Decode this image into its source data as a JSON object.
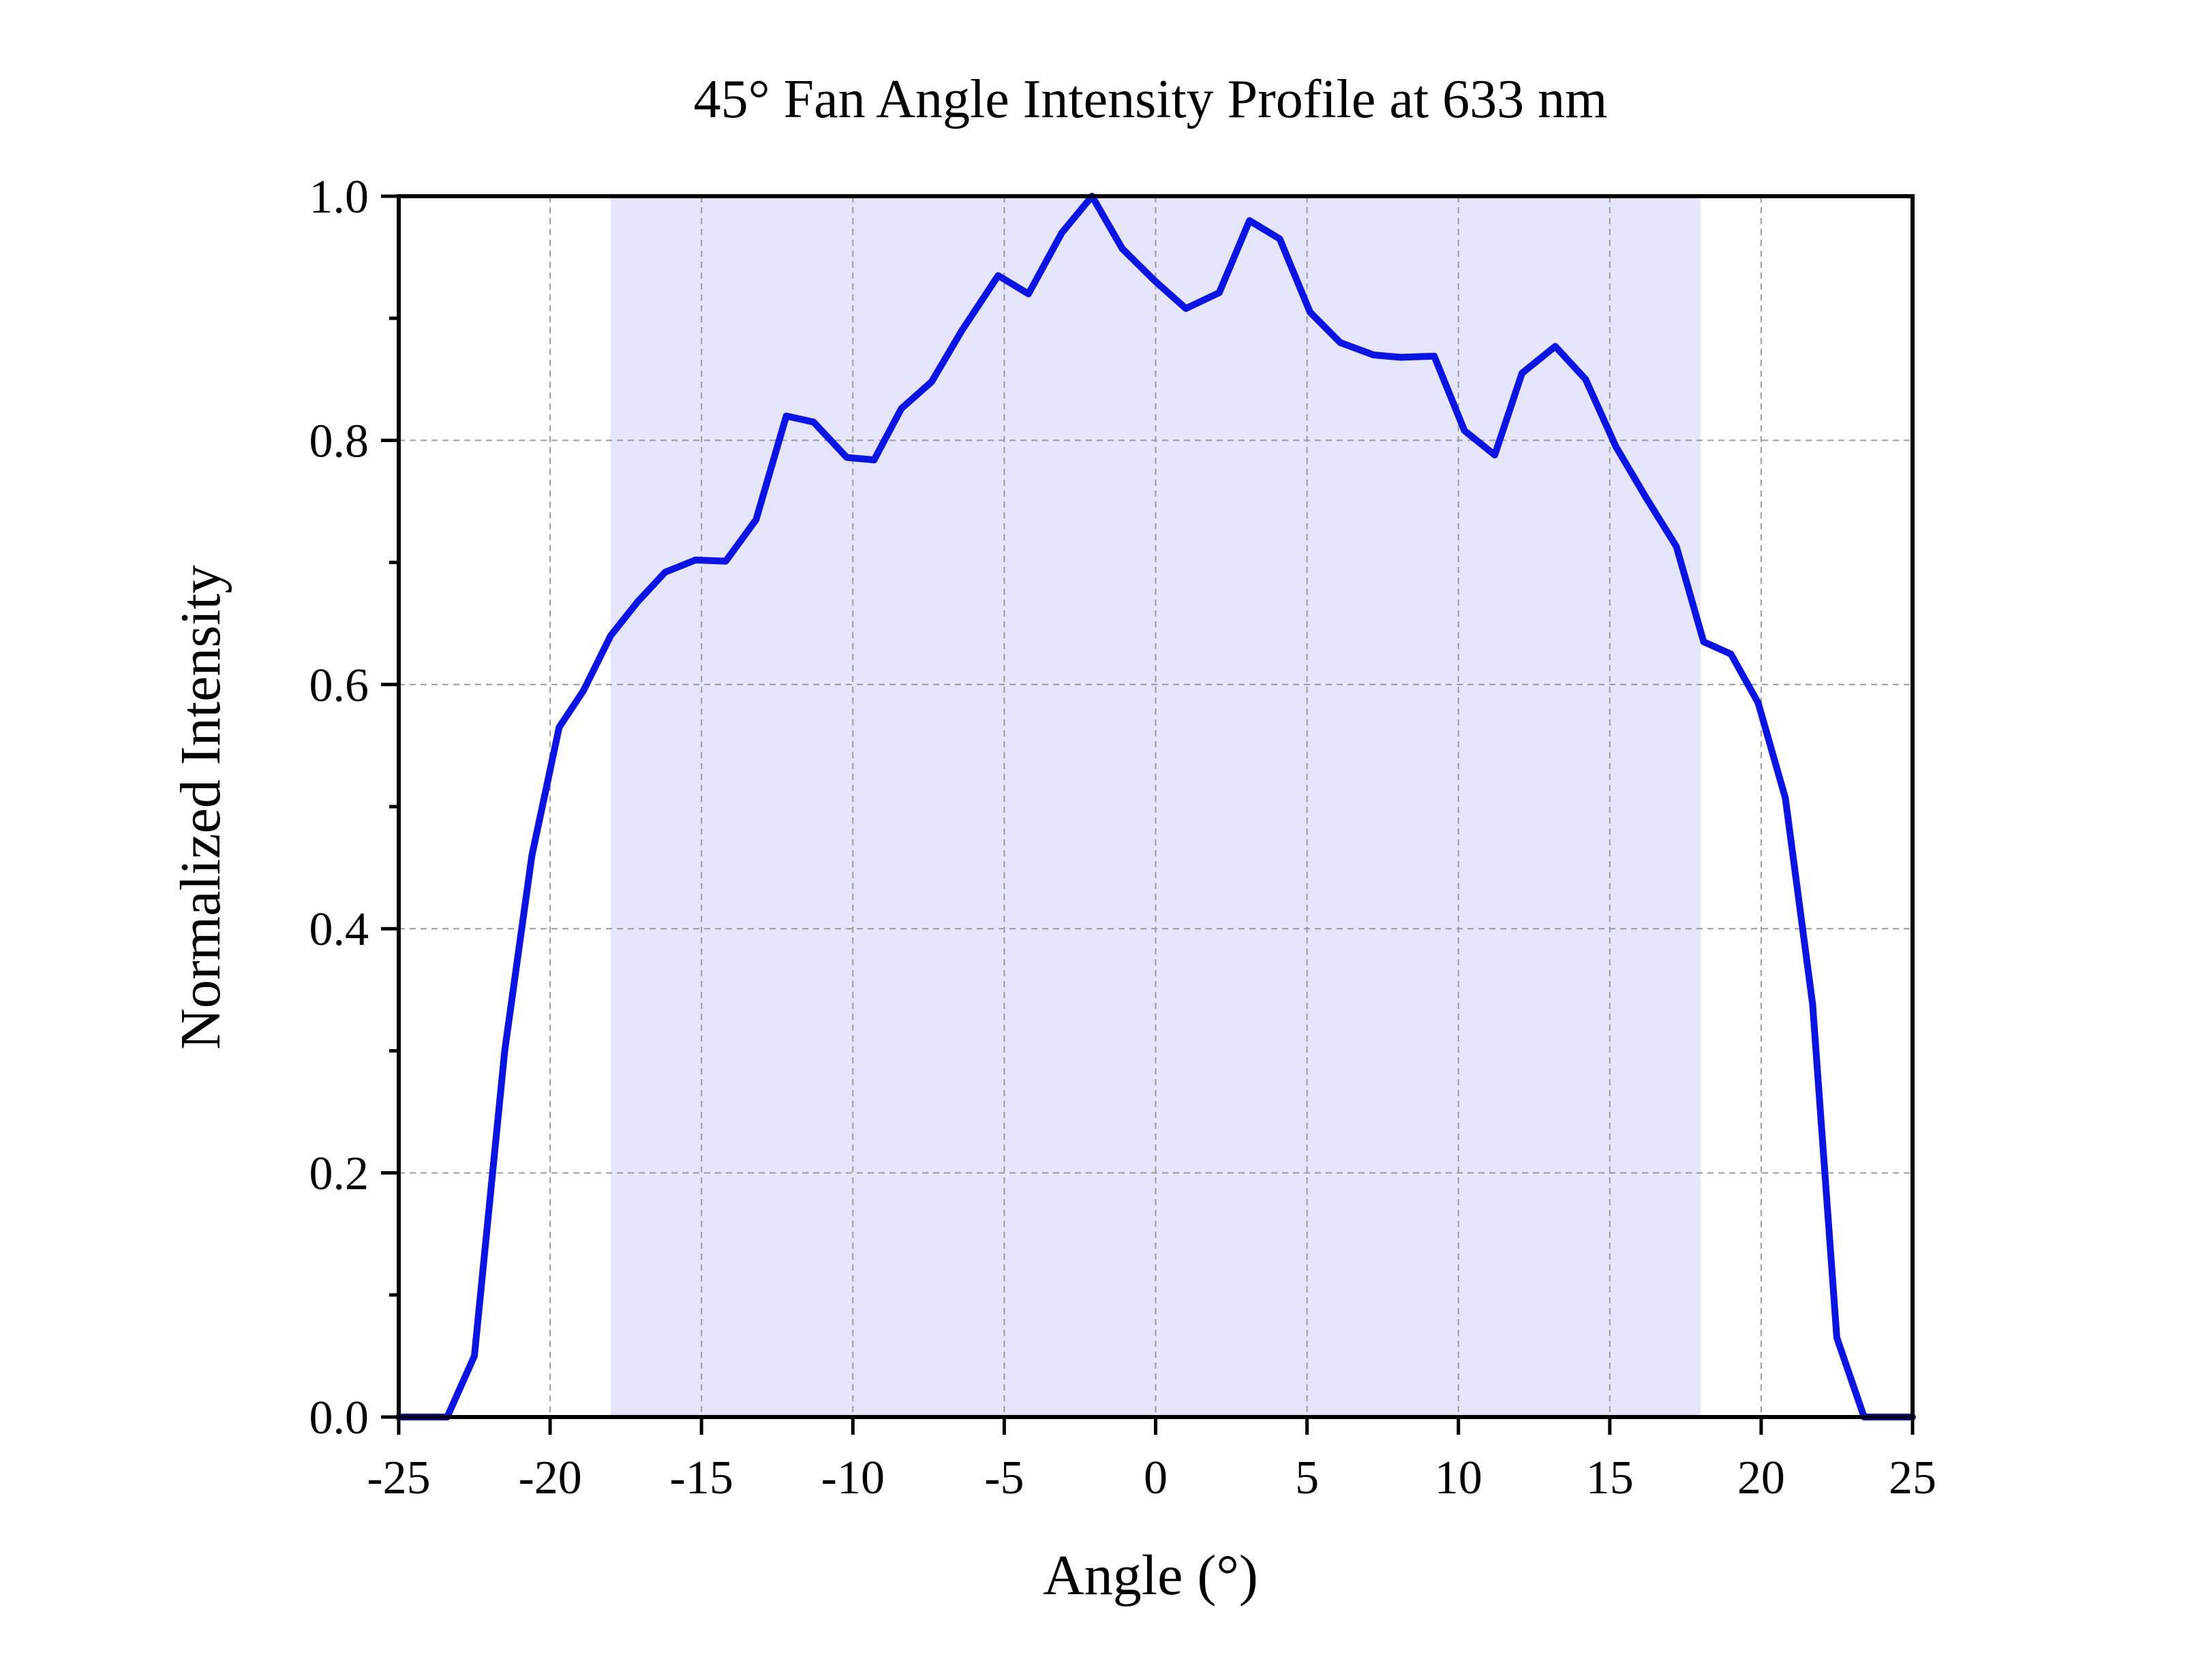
{
  "chart_data": {
    "type": "line",
    "title": "45° Fan Angle Intensity Profile at 633 nm",
    "xlabel": "Angle (°)",
    "ylabel": "Normalized Intensity",
    "xlim": [
      -25,
      25
    ],
    "ylim": [
      0,
      1.0
    ],
    "x_ticks": [
      -25,
      -20,
      -15,
      -10,
      -5,
      0,
      5,
      10,
      15,
      20,
      25
    ],
    "x_tick_labels": [
      "-25",
      "-20",
      "-15",
      "-10",
      "-5",
      "0",
      "5",
      "10",
      "15",
      "20",
      "25"
    ],
    "y_ticks": [
      0,
      0.2,
      0.4,
      0.6,
      0.8,
      1.0
    ],
    "y_tick_labels": [
      "0.0",
      "0.2",
      "0.4",
      "0.6",
      "0.8",
      "1.0"
    ],
    "y_minor_ticks": [
      0.1,
      0.3,
      0.5,
      0.7,
      0.9
    ],
    "grid": true,
    "shaded_region": {
      "x_start": -18,
      "x_end": 18,
      "color": "#e5e6fb"
    },
    "series": [
      {
        "color": "#0a14e6",
        "x": [
          -25.0,
          -23.4,
          -22.5,
          -21.5,
          -20.6,
          -19.7,
          -18.9,
          -18.0,
          -17.1,
          -16.2,
          -15.2,
          -14.2,
          -13.2,
          -12.2,
          -11.3,
          -10.2,
          -9.3,
          -8.4,
          -7.4,
          -6.4,
          -5.2,
          -4.2,
          -3.1,
          -2.1,
          -1.1,
          0.0,
          1.0,
          2.1,
          3.1,
          4.1,
          5.1,
          6.1,
          7.2,
          8.1,
          9.2,
          10.2,
          11.2,
          12.1,
          13.2,
          14.2,
          15.2,
          16.2,
          17.2,
          18.1,
          19.0,
          19.9,
          20.8,
          21.7,
          22.5,
          23.4,
          25.0
        ],
        "y": [
          0.0,
          0.0,
          0.05,
          0.3,
          0.46,
          0.565,
          0.595,
          0.64,
          0.668,
          0.692,
          0.702,
          0.701,
          0.735,
          0.82,
          0.815,
          0.786,
          0.784,
          0.826,
          0.848,
          0.89,
          0.935,
          0.92,
          0.97,
          1.0,
          0.957,
          0.93,
          0.908,
          0.921,
          0.98,
          0.965,
          0.905,
          0.88,
          0.87,
          0.868,
          0.869,
          0.808,
          0.788,
          0.855,
          0.877,
          0.85,
          0.795,
          0.753,
          0.713,
          0.635,
          0.625,
          0.585,
          0.507,
          0.338,
          0.065,
          0.0,
          0.0
        ]
      }
    ]
  }
}
